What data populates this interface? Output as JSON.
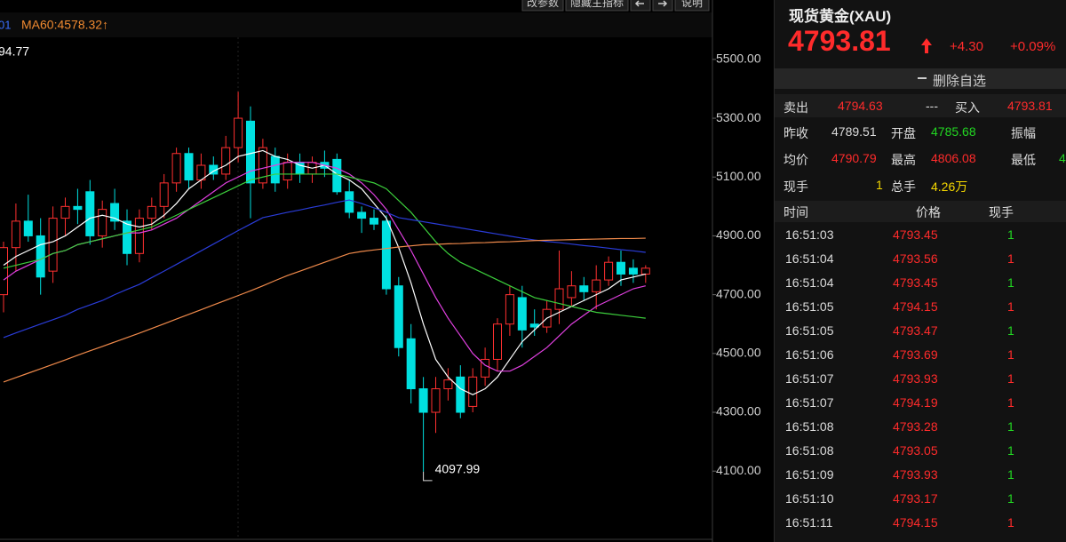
{
  "toolbar": {
    "buttons": [
      "改参数",
      "隐藏主指标",
      "说明"
    ]
  },
  "chart_data": {
    "type": "candlestick",
    "ma_legend": [
      "01",
      "MA60:4578.32↑"
    ],
    "high_label": "94.77",
    "up_color": "#ff3030",
    "down_color": "#00e0e0",
    "ylim": [
      3868,
      5702
    ],
    "yticks": [
      {
        "value": 5500,
        "label": "5500.00"
      },
      {
        "value": 5300,
        "label": "5300.00"
      },
      {
        "value": 5100,
        "label": "5100.00"
      },
      {
        "value": 4900,
        "label": "4900.00"
      },
      {
        "value": 4700,
        "label": "4700.00"
      },
      {
        "value": 4500,
        "label": "4500.00"
      },
      {
        "value": 4300,
        "label": "4300.00"
      },
      {
        "value": 4100,
        "label": "4100.00"
      }
    ],
    "open": [
      4700,
      4860,
      4950,
      4900,
      4780,
      4960,
      5000,
      5050,
      4900,
      5010,
      4950,
      4840,
      4960,
      5000,
      5080,
      5180,
      5090,
      5140,
      5110,
      5200,
      5290,
      5080,
      5170,
      5090,
      5150,
      5110,
      5150,
      5160,
      5050,
      4980,
      4960,
      4950,
      4730,
      4550,
      4380,
      4300,
      4380,
      4420,
      4320,
      4420,
      4480,
      4600,
      4690,
      4600,
      4590,
      4650,
      4690,
      4730,
      4710,
      4750,
      4810,
      4790,
      4770
    ],
    "high": [
      4880,
      5010,
      5040,
      4960,
      5000,
      5030,
      5060,
      5090,
      5020,
      5060,
      4990,
      4990,
      5030,
      5110,
      5200,
      5200,
      5180,
      5170,
      5240,
      5390,
      5340,
      5230,
      5200,
      5180,
      5180,
      5170,
      5190,
      5180,
      5090,
      5000,
      4990,
      4970,
      4760,
      4600,
      4420,
      4420,
      4450,
      4460,
      4450,
      4520,
      4620,
      4730,
      4730,
      4650,
      4680,
      4850,
      4780,
      4760,
      4800,
      4830,
      4850,
      4820,
      4800
    ],
    "low": [
      4640,
      4780,
      4880,
      4700,
      4740,
      4900,
      4940,
      4870,
      4860,
      4920,
      4800,
      4810,
      4920,
      4960,
      5050,
      5060,
      5060,
      5090,
      5090,
      5150,
      4960,
      5060,
      5050,
      5060,
      5080,
      5080,
      5100,
      5040,
      4960,
      4910,
      4920,
      4700,
      4490,
      4330,
      4097.99,
      4230,
      4340,
      4280,
      4300,
      4390,
      4440,
      4560,
      4520,
      4560,
      4570,
      4600,
      4660,
      4680,
      4650,
      4730,
      4730,
      4740,
      4740
    ],
    "close": [
      4860,
      4950,
      4900,
      4760,
      4960,
      5000,
      4990,
      4900,
      4990,
      4950,
      4840,
      4960,
      5000,
      5080,
      5180,
      5090,
      5140,
      5110,
      5200,
      5300,
      5080,
      5200,
      5080,
      5150,
      5110,
      5150,
      5130,
      5050,
      4980,
      4960,
      4940,
      4720,
      4520,
      4380,
      4300,
      4380,
      4410,
      4300,
      4420,
      4480,
      4600,
      4700,
      4580,
      4590,
      4650,
      4720,
      4730,
      4710,
      4750,
      4810,
      4770,
      4770,
      4790
    ],
    "series": [
      {
        "color": "#ffffff",
        "values": [
          4800,
          4830,
          4850,
          4870,
          4880,
          4900,
          4930,
          4960,
          4970,
          4960,
          4940,
          4930,
          4940,
          4970,
          5010,
          5060,
          5090,
          5120,
          5140,
          5170,
          5180,
          5190,
          5170,
          5160,
          5140,
          5130,
          5140,
          5110,
          5090,
          5060,
          5010,
          4960,
          4860,
          4740,
          4600,
          4480,
          4420,
          4380,
          4360,
          4380,
          4420,
          4480,
          4540,
          4580,
          4620,
          4640,
          4660,
          4680,
          4700,
          4720,
          4750,
          4760,
          4770
        ]
      },
      {
        "color": "#e040e0",
        "values": [
          4750,
          4780,
          4800,
          4820,
          4840,
          4850,
          4870,
          4880,
          4890,
          4900,
          4910,
          4910,
          4920,
          4940,
          4960,
          4990,
          5020,
          5050,
          5080,
          5100,
          5120,
          5130,
          5140,
          5150,
          5150,
          5150,
          5140,
          5130,
          5110,
          5080,
          5040,
          4990,
          4920,
          4850,
          4770,
          4690,
          4620,
          4560,
          4500,
          4460,
          4440,
          4440,
          4460,
          4490,
          4520,
          4560,
          4600,
          4630,
          4660,
          4680,
          4700,
          4720,
          4730
        ]
      },
      {
        "color": "#3ccf3c",
        "values": [
          4790,
          4800,
          4810,
          4820,
          4840,
          4850,
          4870,
          4880,
          4890,
          4900,
          4910,
          4920,
          4930,
          4950,
          4970,
          4990,
          5010,
          5030,
          5050,
          5070,
          5090,
          5100,
          5110,
          5110,
          5110,
          5110,
          5110,
          5110,
          5100,
          5090,
          5080,
          5060,
          5020,
          4980,
          4930,
          4880,
          4840,
          4810,
          4790,
          4770,
          4750,
          4730,
          4710,
          4690,
          4680,
          4670,
          4660,
          4650,
          4640,
          4635,
          4630,
          4625,
          4620
        ]
      },
      {
        "color": "#2a3cd8",
        "values": [
          4554,
          4570,
          4585,
          4600,
          4615,
          4630,
          4650,
          4665,
          4680,
          4700,
          4718,
          4735,
          4758,
          4780,
          4803,
          4826,
          4849,
          4872,
          4895,
          4918,
          4940,
          4962,
          4971,
          4980,
          4988,
          4997,
          5005,
          5014,
          5022,
          5010,
          4995,
          4980,
          4962,
          4955,
          4948,
          4941,
          4934,
          4927,
          4920,
          4913,
          4906,
          4899,
          4892,
          4886,
          4881,
          4877,
          4872,
          4867,
          4863,
          4858,
          4853,
          4849,
          4844
        ]
      },
      {
        "color": "#f08a4b",
        "values": [
          4403,
          4418,
          4433,
          4448,
          4463,
          4478,
          4494,
          4509,
          4524,
          4539,
          4554,
          4569,
          4585,
          4601,
          4617,
          4633,
          4649,
          4665,
          4681,
          4697,
          4713,
          4730,
          4748,
          4765,
          4780,
          4795,
          4810,
          4825,
          4840,
          4847,
          4852,
          4857,
          4862,
          4866,
          4870,
          4871,
          4873,
          4874,
          4876,
          4877,
          4879,
          4880,
          4882,
          4884,
          4885,
          4886,
          4887,
          4888,
          4889,
          4890,
          4891,
          4891,
          4892
        ]
      }
    ]
  },
  "quote": {
    "title": "现货黄金(XAU)",
    "price": "4793.81",
    "change": "+4.30",
    "change_pct": "+0.09%",
    "watch_button": "删除自选",
    "sell_label": "卖出",
    "sell": "4794.63",
    "spread": "---",
    "buy_label": "买入",
    "buy": "4793.81",
    "prev_close_label": "昨收",
    "prev_close": "4789.51",
    "open_label": "开盘",
    "open": "4785.68",
    "amplitude_label": "振幅",
    "avg_label": "均价",
    "avg": "4790.79",
    "high_label": "最高",
    "high": "4806.08",
    "low_label": "最低",
    "low": "4",
    "last_vol_label": "现手",
    "last_vol": "1",
    "total_vol_label": "总手",
    "total_vol": "4.26万"
  },
  "trades": {
    "headers": [
      "时间",
      "价格",
      "现手"
    ],
    "rows": [
      {
        "time": "16:51:03",
        "price": "4793.45",
        "volume": "1",
        "color": "#22d622"
      },
      {
        "time": "16:51:04",
        "price": "4793.56",
        "volume": "1",
        "color": "#ff2b2b"
      },
      {
        "time": "16:51:04",
        "price": "4793.45",
        "volume": "1",
        "color": "#22d622"
      },
      {
        "time": "16:51:05",
        "price": "4794.15",
        "volume": "1",
        "color": "#ff2b2b"
      },
      {
        "time": "16:51:05",
        "price": "4793.47",
        "volume": "1",
        "color": "#22d622"
      },
      {
        "time": "16:51:06",
        "price": "4793.69",
        "volume": "1",
        "color": "#ff2b2b"
      },
      {
        "time": "16:51:07",
        "price": "4793.93",
        "volume": "1",
        "color": "#ff2b2b"
      },
      {
        "time": "16:51:07",
        "price": "4794.19",
        "volume": "1",
        "color": "#ff2b2b"
      },
      {
        "time": "16:51:08",
        "price": "4793.28",
        "volume": "1",
        "color": "#22d622"
      },
      {
        "time": "16:51:08",
        "price": "4793.05",
        "volume": "1",
        "color": "#22d622"
      },
      {
        "time": "16:51:09",
        "price": "4793.93",
        "volume": "1",
        "color": "#22d622"
      },
      {
        "time": "16:51:10",
        "price": "4793.17",
        "volume": "1",
        "color": "#22d622"
      },
      {
        "time": "16:51:11",
        "price": "4794.15",
        "volume": "1",
        "color": "#ff2b2b"
      }
    ]
  }
}
